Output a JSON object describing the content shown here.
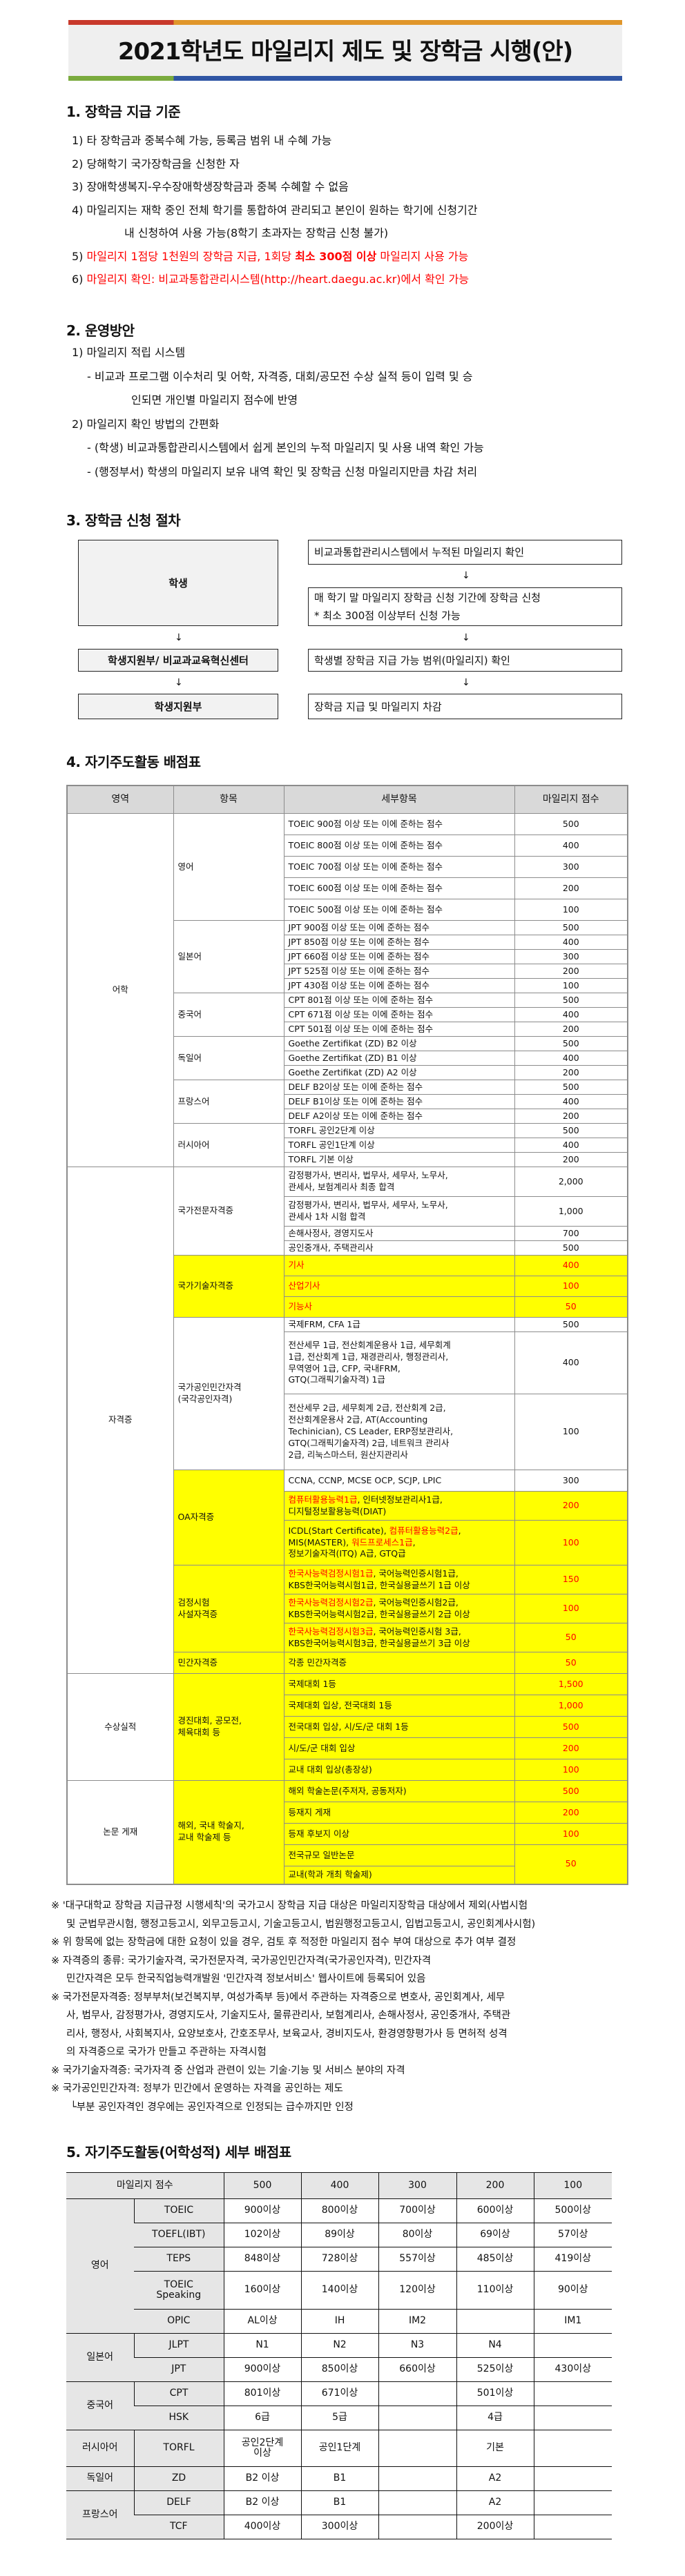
{
  "title": "2021학년도 마일리지 제도 및 장학금 시행(안)",
  "colors": {
    "bar_red": "#c8392b",
    "bar_orange": "#e0962a",
    "bar_green": "#7aab3e",
    "bar_blue": "#2f55a4",
    "highlight": "#ffff00",
    "red_text": "#ff0000",
    "header_bg": "#d9d9d9"
  },
  "section1": {
    "heading": "1. 장학금 지급 기준",
    "items": [
      "1) 타 장학금과 중복수혜 가능, 등록금 범위 내 수혜 가능",
      "2) 당해학기 국가장학금을 신청한 자",
      "3) 장애학생복지-우수장애학생장학금과 중복 수혜할 수 없음",
      "4) 마일리지는 재학 중인 전체 학기를 통합하여 관리되고 본인이 원하는 학기에 신청기간",
      "내 신청하여 사용 가능(8학기 초과자는 장학금 신청 불가)"
    ],
    "item5": {
      "a": "5) ",
      "b": "마일리지 1점당 1천원의 장학금 지급, 1회당 ",
      "c": "최소 300점 이상",
      "d": " 마일리지 사용 가능"
    },
    "item6": {
      "a": "6) ",
      "b": "마일리지 확인: 비교과통합관리시스템(http://heart.daegu.ac.kr)에서 확인 가능"
    }
  },
  "section2": {
    "heading": "2. 운영방안",
    "lines": [
      "1) 마일리지 적립 시스템",
      "- 비교과 프로그램 이수처리 및 어학, 자격증, 대회/공모전 수상 실적 등이 입력 및 승",
      "인되면 개인별 마일리지 점수에 반영",
      "2) 마일리지 확인 방법의 간편화",
      "- (학생) 비교과통합관리시스템에서 쉽게 본인의 누적 마일리지 및 사용 내역 확인 가능",
      "- (행정부서) 학생의 마일리지 보유 내역 확인 및 장학금 신청 마일리지만큼 차감 처리"
    ]
  },
  "section3": {
    "heading": "3. 장학금 신청 절차",
    "left": [
      "학생",
      "학생지원부/ 비교과교육혁신센터",
      "학생지원부"
    ],
    "right": [
      "비교과통합관리시스템에서 누적된 마일리지 확인",
      "매 학기 말 마일리지 장학금 신청 기간에 장학금 신청",
      "* 최소 300점 이상부터 신청 가능",
      "학생별 장학금 지급 가능 범위(마일리지) 확인",
      "장학금 지급 및 마일리지 차감"
    ],
    "arrow": "↓"
  },
  "section4": {
    "heading": "4. 자기주도활동 배점표",
    "columns": [
      "영역",
      "항목",
      "세부항목",
      "마일리지 점수"
    ],
    "groups": [
      {
        "area": "어학",
        "items": [
          {
            "name": "영어",
            "rows": [
              {
                "detail": "TOEIC 900점 이상 또는 이에 준하는 점수",
                "score": "500"
              },
              {
                "detail": "TOEIC 800점 이상 또는 이에 준하는 점수",
                "score": "400"
              },
              {
                "detail": "TOEIC 700점 이상 또는 이에 준하는 점수",
                "score": "300"
              },
              {
                "detail": "TOEIC 600점 이상 또는 이에 준하는 점수",
                "score": "200"
              },
              {
                "detail": "TOEIC 500점 이상 또는 이에 준하는 점수",
                "score": "100"
              }
            ]
          },
          {
            "name": "일본어",
            "rows": [
              {
                "detail": "JPT 900점 이상 또는 이에 준하는 점수",
                "score": "500"
              },
              {
                "detail": "JPT 850점 이상 또는 이에 준하는 점수",
                "score": "400"
              },
              {
                "detail": "JPT 660점 이상 또는 이에 준하는 점수",
                "score": "300"
              },
              {
                "detail": "JPT 525점 이상 또는 이에 준하는 점수",
                "score": "200"
              },
              {
                "detail": "JPT 430점 이상 또는 이에 준하는 점수",
                "score": "100"
              }
            ]
          },
          {
            "name": "중국어",
            "rows": [
              {
                "detail": "CPT 801점 이상 또는 이에 준하는 점수",
                "score": "500"
              },
              {
                "detail": "CPT 671점 이상 또는 이에 준하는 점수",
                "score": "400"
              },
              {
                "detail": "CPT 501점 이상 또는 이에 준하는 점수",
                "score": "200"
              }
            ]
          },
          {
            "name": "독일어",
            "rows": [
              {
                "detail": "Goethe Zertifikat (ZD) B2 이상",
                "score": "500"
              },
              {
                "detail": "Goethe Zertifikat (ZD) B1 이상",
                "score": "400"
              },
              {
                "detail": "Goethe Zertifikat (ZD) A2 이상",
                "score": "200"
              }
            ]
          },
          {
            "name": "프랑스어",
            "rows": [
              {
                "detail": "DELF B2이상 또는 이에 준하는 점수",
                "score": "500"
              },
              {
                "detail": "DELF B1이상 또는 이에 준하는 점수",
                "score": "400"
              },
              {
                "detail": "DELF A2이상 또는 이에 준하는 점수",
                "score": "200"
              }
            ]
          },
          {
            "name": "러시아어",
            "rows": [
              {
                "detail": "TORFL 공인2단계 이상",
                "score": "500"
              },
              {
                "detail": "TORFL 공인1단계 이상",
                "score": "400"
              },
              {
                "detail": "TORFL 기본 이상",
                "score": "200"
              }
            ]
          }
        ]
      },
      {
        "area": "자격증",
        "items": [
          {
            "name": "국가전문자격증",
            "rows": [
              {
                "detail": "감정평가사, 변리사, 법무사, 세무사, 노무사,\n관세사, 보험계리사 최종 합격",
                "score": "2,000"
              },
              {
                "detail": "감정평가사, 변리사, 법무사, 세무사, 노무사,\n관세사 1차 시험 합격",
                "score": "1,000"
              },
              {
                "detail": "손해사정사, 경영지도사",
                "score": "700"
              },
              {
                "detail": "공인중개사, 주택관리사",
                "score": "500"
              }
            ]
          },
          {
            "name": "국가기술자격증",
            "highlight": true,
            "rows": [
              {
                "detail": [
                  {
                    "text": "기사",
                    "red": true
                  }
                ],
                "score": "400",
                "highlight": true,
                "red": true
              },
              {
                "detail": [
                  {
                    "text": "산업기사",
                    "red": true
                  }
                ],
                "score": "100",
                "highlight": true,
                "red": true
              },
              {
                "detail": [
                  {
                    "text": "기능사",
                    "red": true
                  }
                ],
                "score": "50",
                "highlight": true,
                "red": true
              }
            ]
          },
          {
            "name": "국가공인민간자격\n(국각공인자격)",
            "rows": [
              {
                "detail": "국제FRM, CFA 1급",
                "score": "500"
              },
              {
                "detail": "전산세무 1급, 전산회계운용사 1급, 세무회계\n1급, 전산회계 1급, 재경관리사, 행정관리사,\n무역영어 1급, CFP, 국내FRM,\nGTQ(그래픽기술자격) 1급",
                "score": "400"
              },
              {
                "detail": "전산세무 2급, 세무회계 2급, 전산회계 2급,\n전산회계운용사 2급, AT(Accounting\nTechinician), CS Leader, ERP정보관리사,\nGTQ(그래픽기술자격) 2급, 네트워크 관리사\n2급, 리눅스마스터, 원산지관리사",
                "score": "100"
              }
            ]
          },
          {
            "name": "OA자격증",
            "highlight": true,
            "rows": [
              {
                "detail": "CCNA, CCNP, MCSE OCP, SCJP, LPIC",
                "score": "300"
              },
              {
                "detail": [
                  {
                    "text": "컴퓨터활용능력1급",
                    "red": true
                  },
                  {
                    "text": ", 인터넷정보관리사1급,\n디지털정보활용능력(DIAT)"
                  }
                ],
                "score": "200",
                "highlight": true,
                "red": true
              },
              {
                "detail": [
                  {
                    "text": "ICDL(Start Certificate), "
                  },
                  {
                    "text": "컴퓨터활용능력2급",
                    "red": true
                  },
                  {
                    "text": ",\nMIS(MASTER), "
                  },
                  {
                    "text": "워드프로세스1급",
                    "red": true
                  },
                  {
                    "text": ",\n정보기술자격(ITQ) A급, GTQ급"
                  }
                ],
                "score": "100",
                "highlight": true,
                "red": true
              }
            ]
          },
          {
            "name": "검정시험\n사설자격증",
            "highlight": true,
            "rows": [
              {
                "detail": [
                  {
                    "text": "한국사능력검정시험1급",
                    "red": true
                  },
                  {
                    "text": ", 국어능력인증시험1급,\nKBS한국어능력시험1급, 한국실용글쓰기 1급 이상"
                  }
                ],
                "score": "150",
                "highlight": true,
                "red": true
              },
              {
                "detail": [
                  {
                    "text": "한국사능력검정시험2급",
                    "red": true
                  },
                  {
                    "text": ", 국어능력인증시험2급,\nKBS한국어능력시험2급, 한국실용글쓰기 2급 이상"
                  }
                ],
                "score": "100",
                "highlight": true,
                "red": true
              },
              {
                "detail": [
                  {
                    "text": "한국사능력검정시험3급",
                    "red": true
                  },
                  {
                    "text": ", 국어능력인증시험 3급,\nKBS한국어능력시험3급, 한국실용글쓰기 3급 이상"
                  }
                ],
                "score": "50",
                "highlight": true,
                "red": true
              }
            ]
          },
          {
            "name": "민간자격증",
            "highlight": true,
            "rows": [
              {
                "detail": "각종 민간자격증",
                "score": "50",
                "highlight": true,
                "red": true
              }
            ]
          }
        ]
      },
      {
        "area": "수상실적",
        "items": [
          {
            "name": "경진대회, 공모전,\n체육대회 등",
            "highlight": true,
            "rows": [
              {
                "detail": "국제대회 1등",
                "score": "1,500",
                "highlight": true,
                "red": true
              },
              {
                "detail": "국제대회 입상, 전국대회 1등",
                "score": "1,000",
                "highlight": true,
                "red": true
              },
              {
                "detail": "전국대회 입상, 시/도/군 대회 1등",
                "score": "500",
                "highlight": true,
                "red": true
              },
              {
                "detail": "시/도/군 대회 입상",
                "score": "200",
                "highlight": true,
                "red": true
              },
              {
                "detail": "교내 대회 입상(총장상)",
                "score": "100",
                "highlight": true,
                "red": true
              }
            ]
          }
        ]
      },
      {
        "area": "논문 게재",
        "items": [
          {
            "name": "해외, 국내 학술지,\n교내 학술제 등",
            "highlight": true,
            "rows": [
              {
                "detail": "해외 학술논문(주저자, 공동저자)",
                "score": "500",
                "highlight": true,
                "red": true
              },
              {
                "detail": "등재지 게재",
                "score": "200",
                "highlight": true,
                "red": true
              },
              {
                "detail": "등재 후보지 이상",
                "score": "100",
                "highlight": true,
                "red": true
              },
              {
                "detail": "전국규모 일반논문",
                "score": "50",
                "highlight": true,
                "red": true
              },
              {
                "detail": "교내(학과 개최 학술제)",
                "highlight": true
              }
            ]
          }
        ]
      }
    ]
  },
  "notes": [
    "※ '대구대학교 장학금 지급규정 시행세칙'의 국가고시 장학금 지급 대상은 마일리지장학금 대상에서 제외(사법시험\n및 군법무관시험, 행정고등고시, 외무고등고시, 기술고등고시, 법원행정고등고시, 입법고등고시, 공인회계사시험)",
    "※ 위 항목에 없는 장학금에 대한 요청이 있을 경우, 검토 후 적정한 마일리지 점수 부여 대상으로 추가 여부 결정",
    "※ 자격증의 종류: 국가기술자격, 국가전문자격, 국가공인민간자격(국가공인자격), 민간자격\n민간자격은 모두 한국직업능력개발원 '민간자격 정보서비스' 웹사이트에 등록되어 있음",
    "※ 국가전문자격증: 정부부처(보건복지부, 여성가족부 등)에서 주관하는 자격증으로 변호사, 공인회계사, 세무\n사, 법무사, 감정평가사, 경영지도사, 기술지도사, 물류관리사, 보험계리사, 손해사정사, 공인중개사, 주택관\n리사, 행정사, 사회복지사, 요양보호사, 간호조무사, 보육교사, 경비지도사, 환경영향평가사 등 면허적 성격\n의 자격증으로 국가가 만들고 주관하는 자격시험",
    "※ 국가기술자격증: 국가자격 중 산업과 관련이 있는 기술·기능 및 서비스 분야의 자격",
    "※ 국가공인민간자격: 정부가 민간에서 운영하는 자격을 공인하는 제도"
  ],
  "subnote": "└부분 공인자격인 경우에는 공인자격으로 인정되는 급수까지만 인정",
  "section5": {
    "heading": "5. 자기주도활동(어학성적) 세부 배점표",
    "header": [
      "마일리지 점수",
      "500",
      "400",
      "300",
      "200",
      "100"
    ],
    "groups": [
      {
        "lang": "영어",
        "tests": [
          {
            "name": "TOEIC",
            "values": [
              "900이상",
              "800이상",
              "700이상",
              "600이상",
              "500이상"
            ]
          },
          {
            "name": "TOEFL(IBT)",
            "values": [
              "102이상",
              "89이상",
              "80이상",
              "69이상",
              "57이상"
            ]
          },
          {
            "name": "TEPS",
            "values": [
              "848이상",
              "728이상",
              "557이상",
              "485이상",
              "419이상"
            ]
          },
          {
            "name": "TOEIC\nSpeaking",
            "values": [
              "160이상",
              "140이상",
              "120이상",
              "110이상",
              "90이상"
            ]
          },
          {
            "name": "OPIC",
            "values": [
              "AL이상",
              "IH",
              "IM2",
              "",
              "IM1"
            ]
          }
        ]
      },
      {
        "lang": "일본어",
        "tests": [
          {
            "name": "JLPT",
            "values": [
              "N1",
              "N2",
              "N3",
              "N4",
              ""
            ]
          },
          {
            "name": "JPT",
            "values": [
              "900이상",
              "850이상",
              "660이상",
              "525이상",
              "430이상"
            ]
          }
        ]
      },
      {
        "lang": "중국어",
        "tests": [
          {
            "name": "CPT",
            "values": [
              "801이상",
              "671이상",
              "",
              "501이상",
              ""
            ]
          },
          {
            "name": "HSK",
            "values": [
              "6급",
              "5급",
              "",
              "4급",
              ""
            ]
          }
        ]
      },
      {
        "lang": "러시아어",
        "tests": [
          {
            "name": "TORFL",
            "values": [
              "공인2단계\n이상",
              "공인1단계",
              "",
              "기본",
              ""
            ]
          }
        ]
      },
      {
        "lang": "독일어",
        "tests": [
          {
            "name": "ZD",
            "values": [
              "B2 이상",
              "B1",
              "",
              "A2",
              ""
            ]
          }
        ]
      },
      {
        "lang": "프랑스어",
        "tests": [
          {
            "name": "DELF",
            "values": [
              "B2 이상",
              "B1",
              "",
              "A2",
              ""
            ]
          },
          {
            "name": "TCF",
            "values": [
              "400이상",
              "300이상",
              "",
              "200이상",
              ""
            ]
          }
        ]
      }
    ]
  }
}
